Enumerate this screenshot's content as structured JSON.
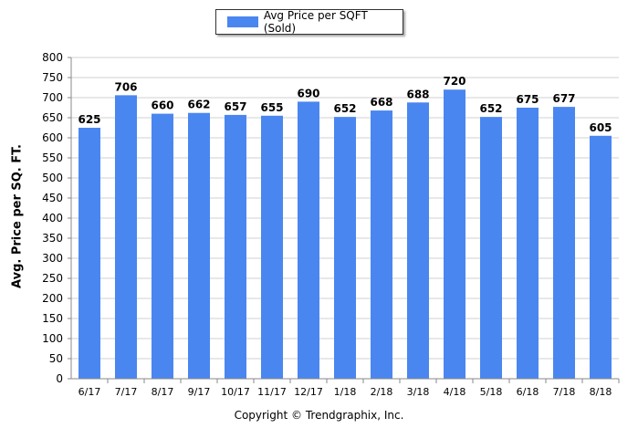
{
  "chart_data": {
    "type": "bar",
    "title": "",
    "xlabel": "",
    "ylabel": "Avg. Price per SQ. FT.",
    "categories": [
      "6/17",
      "7/17",
      "8/17",
      "9/17",
      "10/17",
      "11/17",
      "12/17",
      "1/18",
      "2/18",
      "3/18",
      "4/18",
      "5/18",
      "6/18",
      "7/18",
      "8/18"
    ],
    "series": [
      {
        "name": "Avg Price per SQFT (Sold)",
        "values": [
          625,
          706,
          660,
          662,
          657,
          655,
          690,
          652,
          668,
          688,
          720,
          652,
          675,
          677,
          605
        ],
        "color": "#4a86f0"
      }
    ],
    "ylim": [
      0,
      800
    ],
    "yticks": [
      0,
      50,
      100,
      150,
      200,
      250,
      300,
      350,
      400,
      450,
      500,
      550,
      600,
      650,
      700,
      750,
      800
    ],
    "grid": true,
    "legend": "top-center",
    "data_labels": true
  },
  "footer": {
    "copyright": "Copyright © Trendgraphix, Inc."
  }
}
